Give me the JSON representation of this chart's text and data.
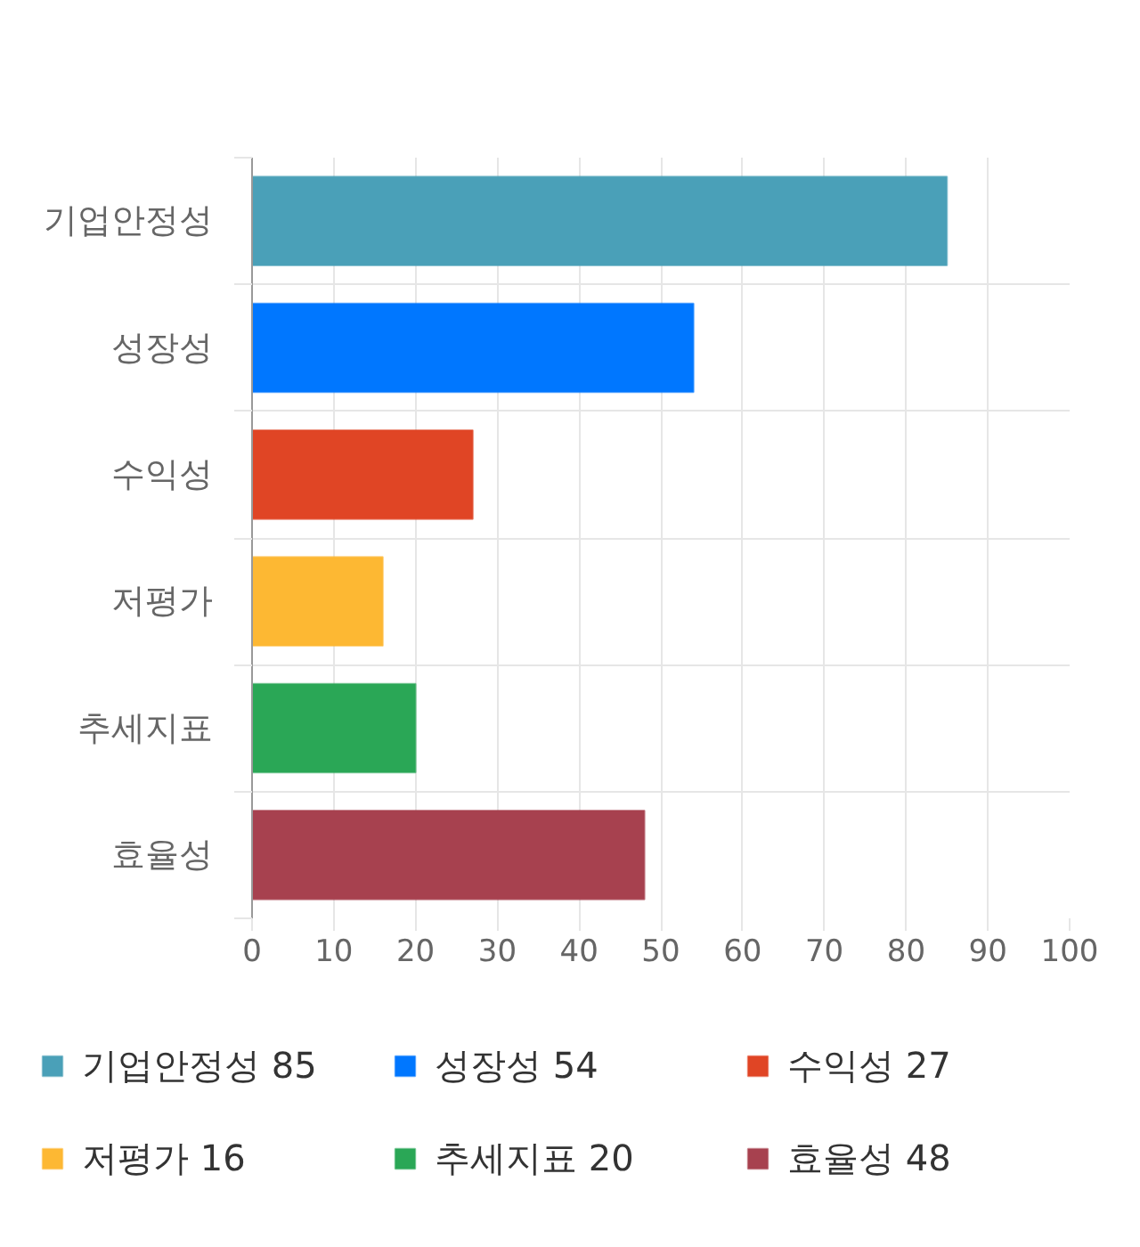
{
  "chart_data": {
    "type": "bar",
    "orientation": "horizontal",
    "categories": [
      "기업안정성",
      "성장성",
      "수익성",
      "저평가",
      "추세지표",
      "효율성"
    ],
    "series": [
      {
        "name": "기업안정성 85",
        "color": "#4aa0b8",
        "values": [
          85,
          null,
          null,
          null,
          null,
          null
        ]
      },
      {
        "name": "성장성 54",
        "color": "#0077ff",
        "values": [
          null,
          54,
          null,
          null,
          null,
          null
        ]
      },
      {
        "name": "수익성 27",
        "color": "#e04525",
        "values": [
          null,
          null,
          27,
          null,
          null,
          null
        ]
      },
      {
        "name": "저평가 16",
        "color": "#fdb833",
        "values": [
          null,
          null,
          null,
          16,
          null,
          null
        ]
      },
      {
        "name": "추세지표 20",
        "color": "#2aa756",
        "values": [
          null,
          null,
          null,
          null,
          20,
          null
        ]
      },
      {
        "name": "효율성 48",
        "color": "#a7414f",
        "values": [
          null,
          null,
          null,
          null,
          null,
          48
        ]
      }
    ],
    "xlim": [
      0,
      100
    ],
    "xticks": [
      0,
      10,
      20,
      30,
      40,
      50,
      60,
      70,
      80,
      90,
      100
    ],
    "grid": true,
    "legend": "bottom"
  }
}
